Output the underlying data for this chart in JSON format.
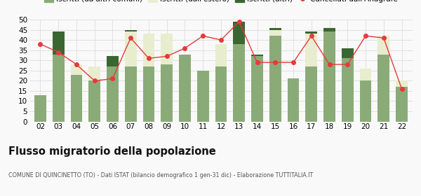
{
  "years": [
    "02",
    "03",
    "04",
    "05",
    "06",
    "07",
    "08",
    "09",
    "10",
    "11",
    "12",
    "13",
    "14",
    "15",
    "16",
    "17",
    "18",
    "19",
    "20",
    "21",
    "22"
  ],
  "iscritti_altri_comuni": [
    13,
    33,
    23,
    20,
    27,
    27,
    27,
    28,
    33,
    25,
    27,
    38,
    32,
    42,
    21,
    27,
    44,
    31,
    20,
    33,
    17
  ],
  "iscritti_estero": [
    0,
    0,
    5,
    7,
    0,
    17,
    16,
    15,
    0,
    0,
    11,
    0,
    0,
    3,
    0,
    16,
    0,
    0,
    6,
    9,
    3
  ],
  "iscritti_altri": [
    0,
    11,
    0,
    0,
    5,
    1,
    0,
    0,
    0,
    0,
    0,
    11,
    1,
    1,
    0,
    1,
    2,
    5,
    0,
    0,
    0
  ],
  "cancellati": [
    38,
    34,
    28,
    20,
    21,
    41,
    31,
    32,
    36,
    42,
    40,
    49,
    29,
    29,
    29,
    42,
    28,
    28,
    42,
    41,
    16
  ],
  "color_altri_comuni": "#8aab78",
  "color_estero": "#e8edcf",
  "color_altri": "#3a6632",
  "color_cancellati": "#e8393a",
  "color_cancellati_line": "#e8393a",
  "title": "Flusso migratorio della popolazione",
  "subtitle": "COMUNE DI QUINCINETTO (TO) - Dati ISTAT (bilancio demografico 1 gen-31 dic) - Elaborazione TUTTITALIA.IT",
  "ylim": [
    0,
    50
  ],
  "yticks": [
    0,
    5,
    10,
    15,
    20,
    25,
    30,
    35,
    40,
    45,
    50
  ],
  "bgcolor": "#f9f9f9",
  "grid_color": "#dddddd"
}
